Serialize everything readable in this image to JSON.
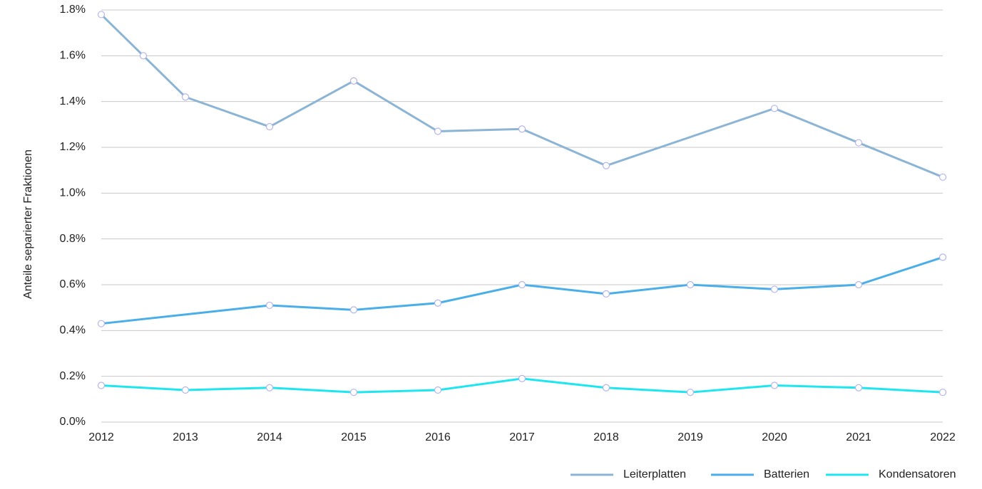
{
  "chart_data": {
    "type": "line",
    "y_label": "Anteile separierter Fraktionen",
    "xlim": [
      2012,
      2022
    ],
    "xticks": [
      2012,
      2013,
      2014,
      2015,
      2016,
      2017,
      2018,
      2019,
      2020,
      2021,
      2022
    ],
    "ylim": [
      0,
      1.8
    ],
    "yticks": [
      {
        "value": 0,
        "label": "0.0%"
      },
      {
        "value": 0.2,
        "label": "0.2%"
      },
      {
        "value": 0.4,
        "label": "0.4%"
      },
      {
        "value": 0.6,
        "label": "0.6%"
      },
      {
        "value": 0.8,
        "label": "0.8%"
      },
      {
        "value": 1.0,
        "label": "1.0%"
      },
      {
        "value": 1.2,
        "label": "1.2%"
      },
      {
        "value": 1.4,
        "label": "1.4%"
      },
      {
        "value": 1.6,
        "label": "1.6%"
      },
      {
        "value": 1.8,
        "label": "1.8%"
      }
    ],
    "grid": true,
    "legend": "bottom-right",
    "series": [
      {
        "name": "Leiterplatten",
        "color": "#8cb4d4",
        "x": [
          2012,
          2012.5,
          2013,
          2014,
          2015,
          2016,
          2017,
          2018,
          2020,
          2021,
          2022
        ],
        "values": [
          1.78,
          1.6,
          1.42,
          1.29,
          1.49,
          1.27,
          1.28,
          1.12,
          1.37,
          1.22,
          1.07
        ]
      },
      {
        "name": "Batterien",
        "color": "#4aaee8",
        "x": [
          2012,
          2014,
          2015,
          2016,
          2017,
          2018,
          2019,
          2020,
          2021,
          2022
        ],
        "values": [
          0.43,
          0.51,
          0.49,
          0.52,
          0.6,
          0.56,
          0.6,
          0.58,
          0.6,
          0.72
        ]
      },
      {
        "name": "Kondensatoren",
        "color": "#1ee6f0",
        "x": [
          2012,
          2013,
          2014,
          2015,
          2016,
          2017,
          2018,
          2019,
          2020,
          2021,
          2022
        ],
        "values": [
          0.16,
          0.14,
          0.15,
          0.13,
          0.14,
          0.19,
          0.15,
          0.13,
          0.16,
          0.15,
          0.13
        ]
      }
    ]
  }
}
